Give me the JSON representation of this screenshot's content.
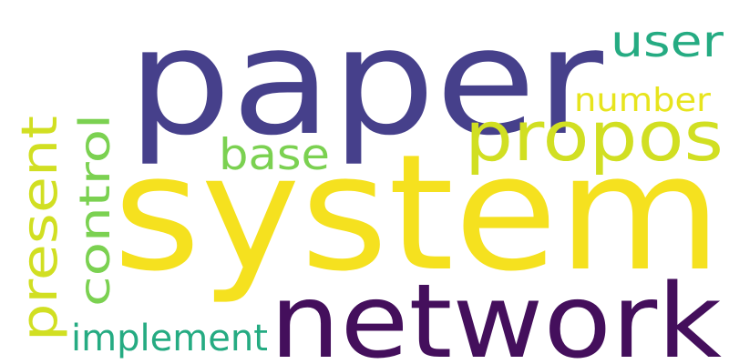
{
  "word_cloud": {
    "words": [
      {
        "key": "paper",
        "text": "paper",
        "color": "#46408b"
      },
      {
        "key": "system",
        "text": "system",
        "color": "#f5e11f"
      },
      {
        "key": "network",
        "text": "network",
        "color": "#440f5c"
      },
      {
        "key": "propos",
        "text": "propos",
        "color": "#d1df22"
      },
      {
        "key": "user",
        "text": "user",
        "color": "#25ab82"
      },
      {
        "key": "number",
        "text": "number",
        "color": "#e7e41d"
      },
      {
        "key": "base",
        "text": "base",
        "color": "#7bd151"
      },
      {
        "key": "control",
        "text": "control",
        "color": "#7bd151"
      },
      {
        "key": "present",
        "text": "present",
        "color": "#d1df22"
      },
      {
        "key": "implement",
        "text": "implement",
        "color": "#25ab82"
      }
    ]
  }
}
